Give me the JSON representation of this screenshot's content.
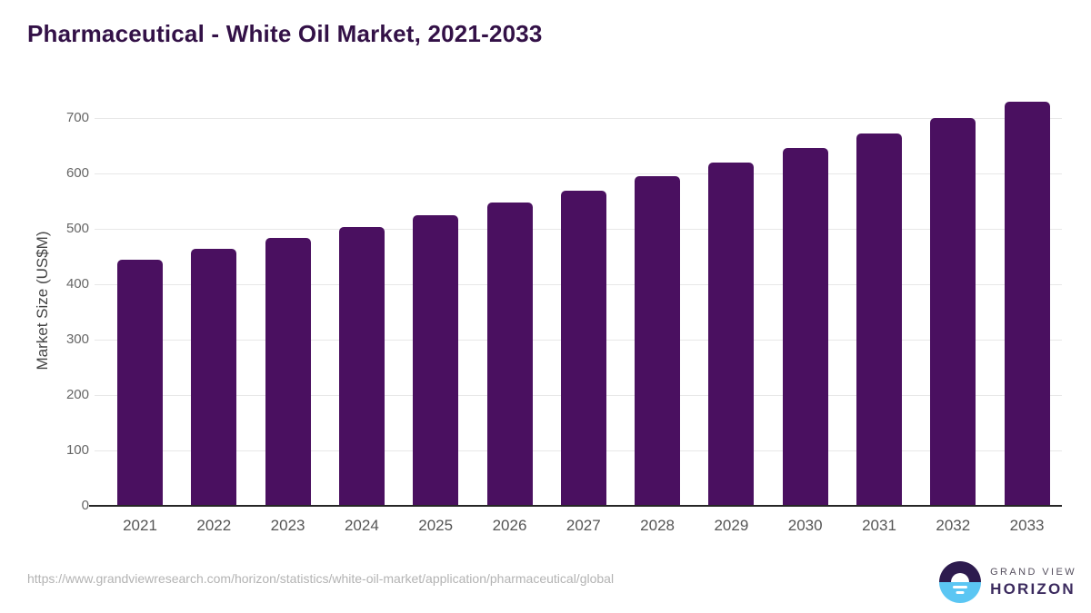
{
  "title": "Pharmaceutical - White Oil Market, 2021-2033",
  "chart_data": {
    "type": "bar",
    "title": "Pharmaceutical - White Oil Market, 2021-2033",
    "categories": [
      "2021",
      "2022",
      "2023",
      "2024",
      "2025",
      "2026",
      "2027",
      "2028",
      "2029",
      "2030",
      "2031",
      "2032",
      "2033"
    ],
    "values": [
      445,
      464,
      484,
      504,
      526,
      548,
      570,
      595,
      620,
      646,
      673,
      700,
      730
    ],
    "xlabel": "",
    "ylabel": "Market Size (US$M)",
    "ylim": [
      0,
      750
    ],
    "yticks": [
      0,
      100,
      200,
      300,
      400,
      500,
      600,
      700
    ],
    "grid": "horizontal-light",
    "legend": "none"
  },
  "colors": {
    "bar": "#4a1060",
    "title": "#331147",
    "gridline": "#e8e8e8",
    "axis_line": "#262626",
    "tick_label": "#666666",
    "x_label": "#555555",
    "logo_purple": "#2d1b4e",
    "logo_blue": "#5bc6f3",
    "logo_text": "#3b2a5e"
  },
  "footer": {
    "source_url": "https://www.grandviewresearch.com/horizon/statistics/white-oil-market/application/pharmaceutical/global",
    "logo": {
      "top": "GRAND VIEW",
      "bottom": "HORIZON"
    }
  }
}
